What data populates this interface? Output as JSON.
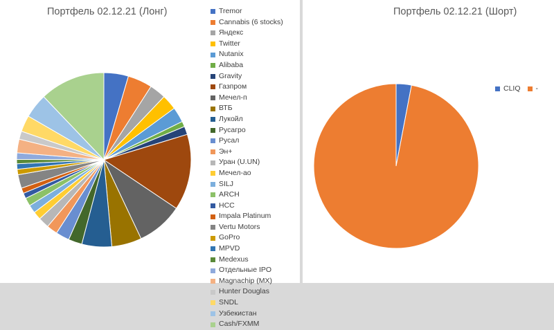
{
  "chart_data": [
    {
      "type": "pie",
      "title": "Портфель 02.12.21 (Лонг)",
      "legend_position": "right",
      "categories": [
        "Tremor",
        "Cannabis (6 stocks)",
        "Яндекс",
        "Twitter",
        "Nutanix",
        "Alibaba",
        "Gravity",
        "Газпром",
        "Мечел-п",
        "ВТБ",
        "Лукойл",
        "Русагро",
        "Русал",
        "Эн+",
        "Уран (U.UN)",
        "Мечел-ао",
        "SILJ",
        "ARCH",
        "HCC",
        "Impala Platinum",
        "Vertu Motors",
        "GoPro",
        "MPVD",
        "Medexus",
        "Отдельные IPO",
        "Magnachip (MX)",
        "Hunter Douglas",
        "SNDL",
        "Узбекистан",
        "Cash/FXMM"
      ],
      "values": [
        4.5,
        4.5,
        3.0,
        2.8,
        2.8,
        1.0,
        1.5,
        14.0,
        8.5,
        5.5,
        5.5,
        2.5,
        2.5,
        2.0,
        2.0,
        1.5,
        1.5,
        1.5,
        1.0,
        1.0,
        2.5,
        1.0,
        1.0,
        0.8,
        1.2,
        2.5,
        1.5,
        3.0,
        4.5,
        12.0
      ],
      "colors": [
        "#4472c4",
        "#ed7d31",
        "#a5a5a5",
        "#ffc000",
        "#5b9bd5",
        "#70ad47",
        "#264478",
        "#9e480e",
        "#636363",
        "#997300",
        "#255e91",
        "#43682b",
        "#698ed0",
        "#f1975a",
        "#b7b7b7",
        "#ffcd33",
        "#7cafdd",
        "#8cc168",
        "#335aa1",
        "#d26012",
        "#848484",
        "#cc9a00",
        "#3275b2",
        "#5a8a39",
        "#8faadc",
        "#f4b183",
        "#c9c9c9",
        "#ffd966",
        "#9dc3e6",
        "#a9d18e"
      ]
    },
    {
      "type": "pie",
      "title": "Портфель 02.12.21 (Шорт)",
      "legend_position": "top-right",
      "categories": [
        "CLIQ",
        "-"
      ],
      "values": [
        3,
        97
      ],
      "colors": [
        "#4472c4",
        "#ed7d31"
      ]
    }
  ]
}
